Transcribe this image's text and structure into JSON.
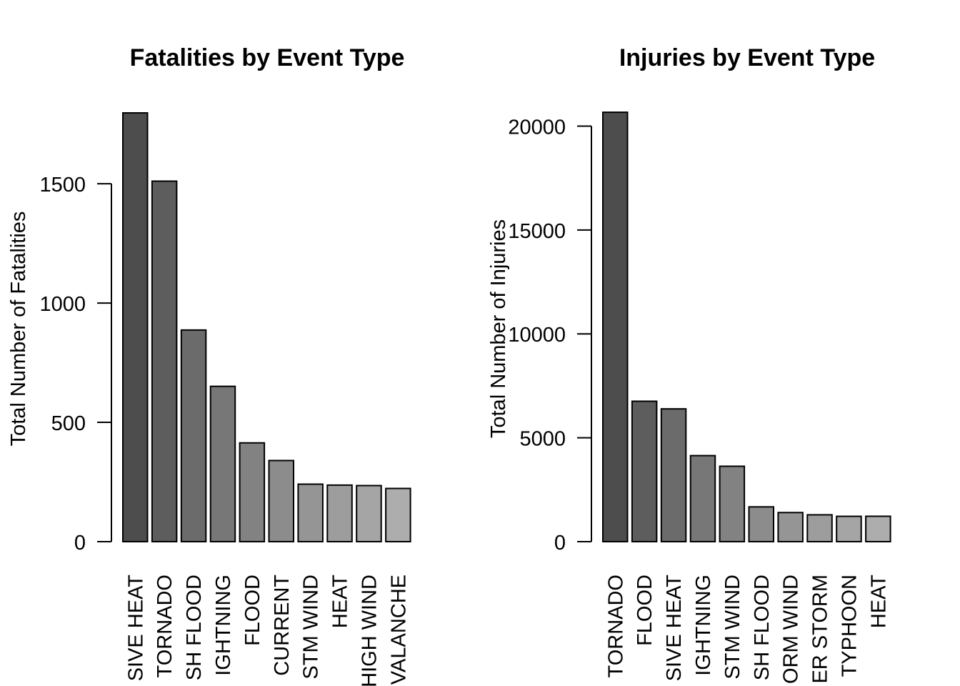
{
  "chart_data": [
    {
      "type": "bar",
      "title": "Fatalities by Event Type",
      "xlabel": "",
      "ylabel": "Total Number of Fatalities",
      "ylim": [
        0,
        1800
      ],
      "yticks": [
        0,
        500,
        1000,
        1500
      ],
      "categories": [
        "EXCESSIVE HEAT",
        "TORNADO",
        "FLASH FLOOD",
        "LIGHTNING",
        "FLOOD",
        "RIP CURRENT",
        "TSTM WIND",
        "HEAT",
        "HIGH WIND",
        "AVALANCHE"
      ],
      "categories_visible": [
        "SIVE HEAT",
        "TORNADO",
        "SH FLOOD",
        "IGHTNING",
        "FLOOD",
        "CURRENT",
        "STM WIND",
        "HEAT",
        "HIGH WIND",
        "VALANCHE"
      ],
      "values": [
        1797,
        1511,
        887,
        651,
        414,
        340,
        241,
        237,
        235,
        223
      ],
      "colors": [
        "#4d4d4d",
        "#5d5d5d",
        "#6b6b6b",
        "#777777",
        "#828282",
        "#8c8c8c",
        "#959595",
        "#9d9d9d",
        "#a5a5a5",
        "#adadad"
      ],
      "grid": false,
      "legend": "none"
    },
    {
      "type": "bar",
      "title": "Injuries by Event Type",
      "xlabel": "",
      "ylabel": "Total Number of Injuries",
      "ylim": [
        0,
        20670
      ],
      "yticks": [
        0,
        5000,
        10000,
        15000,
        20000
      ],
      "categories": [
        "TORNADO",
        "FLOOD",
        "EXCESSIVE HEAT",
        "LIGHTNING",
        "TSTM WIND",
        "FLASH FLOOD",
        "THUNDERSTORM WIND",
        "WINTER STORM",
        "HURRICANE/TYPHOON",
        "HEAT"
      ],
      "categories_visible": [
        "TORNADO",
        "FLOOD",
        "SIVE HEAT",
        "IGHTNING",
        "STM WIND",
        "SH FLOOD",
        "ORM WIND",
        "ER STORM",
        "TYPHOON",
        "HEAT"
      ],
      "values": [
        20667,
        6758,
        6391,
        4141,
        3629,
        1674,
        1400,
        1292,
        1219,
        1222
      ],
      "colors": [
        "#4d4d4d",
        "#5d5d5d",
        "#6b6b6b",
        "#777777",
        "#828282",
        "#8c8c8c",
        "#959595",
        "#9d9d9d",
        "#a5a5a5",
        "#adadad"
      ],
      "grid": false,
      "legend": "none"
    }
  ]
}
